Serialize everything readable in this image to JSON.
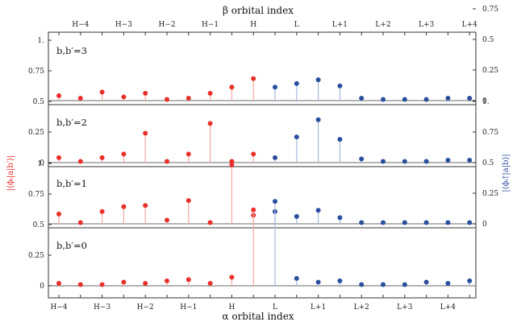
{
  "chart_data": {
    "type": "stem",
    "top_axis_title": "β orbital index",
    "bottom_axis_title": "α orbital index",
    "left_ylabel": "|⟨ϕᵢ|a|b′⟩|",
    "right_ylabel": "|⟨ϕᵢ†|a|b⟩|",
    "x_tick_labels_bottom": [
      "H−4",
      "H−3",
      "H−2",
      "H−1",
      "H",
      "L",
      "L+1",
      "L+2",
      "L+3",
      "L+4"
    ],
    "x_tick_labels_top": [
      "H−4",
      "H−3",
      "H−2",
      "H−1",
      "H",
      "L",
      "L+1",
      "L+2",
      "L+3",
      "L+4"
    ],
    "left_yticks": [
      "0",
      "0.25",
      "0.5",
      "0.75",
      "1."
    ],
    "right_yticks": [
      "0",
      "0.25",
      "0.5",
      "0.75",
      "1."
    ],
    "ylim": [
      0,
      1
    ],
    "x_positions": [
      1,
      2,
      3,
      4,
      5,
      6,
      7,
      8,
      9,
      10,
      11,
      12,
      13,
      14,
      15,
      16,
      17,
      18,
      19,
      20
    ],
    "colors": {
      "alpha": "#e8302a",
      "beta": "#2a4f9e",
      "alpha_stem": "#f4a8a0",
      "beta_stem": "#a8b8dc",
      "baseline": "#888888"
    },
    "panels": [
      {
        "label": "b,b′=3",
        "series": [
          {
            "name": "α",
            "color": "#e8302a",
            "x": [
              1,
              2,
              3,
              4,
              5,
              6,
              7,
              8,
              9,
              10
            ],
            "values": [
              0.04,
              0.02,
              0.07,
              0.03,
              0.06,
              0.01,
              0.02,
              0.06,
              0.11,
              0.18
            ]
          },
          {
            "name": "β",
            "color": "#2a4f9e",
            "x": [
              11,
              12,
              13,
              14,
              15,
              16,
              17,
              18,
              19,
              20
            ],
            "values": [
              0.11,
              0.14,
              0.17,
              0.12,
              0.02,
              0.01,
              0.01,
              0.01,
              0.02,
              0.02
            ]
          }
        ]
      },
      {
        "label": "b,b′=2",
        "series": [
          {
            "name": "α",
            "color": "#e8302a",
            "x": [
              1,
              2,
              3,
              4,
              5,
              6,
              7,
              8,
              9,
              10
            ],
            "values": [
              0.04,
              0.01,
              0.04,
              0.07,
              0.24,
              0.01,
              0.07,
              0.32,
              0.01,
              0.07
            ]
          },
          {
            "name": "β",
            "color": "#2a4f9e",
            "x": [
              11,
              12,
              13,
              14,
              15,
              16,
              17,
              18,
              19,
              20
            ],
            "values": [
              0.04,
              0.21,
              0.35,
              0.19,
              0.03,
              0.01,
              0.01,
              0.01,
              0.02,
              0.02
            ]
          }
        ]
      },
      {
        "label": "b,b′=1",
        "series": [
          {
            "name": "α",
            "color": "#e8302a",
            "x": [
              1,
              2,
              3,
              4,
              5,
              6,
              7,
              8,
              9,
              10
            ],
            "values": [
              0.08,
              0.01,
              0.1,
              0.14,
              0.15,
              0.03,
              0.19,
              0.01,
              0.48,
              0.07
            ]
          },
          {
            "name": "β",
            "color": "#2a4f9e",
            "x": [
              11,
              12,
              13,
              14,
              15,
              16,
              17,
              18,
              19,
              20
            ],
            "values": [
              0.1,
              0.06,
              0.11,
              0.05,
              0.01,
              0.01,
              0.01,
              0.01,
              0.01,
              0.01
            ]
          }
        ]
      },
      {
        "label": "b,b′=0",
        "series": [
          {
            "name": "α",
            "color": "#e8302a",
            "x": [
              1,
              2,
              3,
              4,
              5,
              6,
              7,
              8,
              9,
              10
            ],
            "values": [
              0.02,
              0.01,
              0.01,
              0.03,
              0.02,
              0.04,
              0.05,
              0.02,
              0.07,
              0.62
            ]
          },
          {
            "name": "β",
            "color": "#2a4f9e",
            "x": [
              11,
              12,
              13,
              14,
              15,
              16,
              17,
              18,
              19,
              20
            ],
            "values": [
              0.69,
              0.06,
              0.03,
              0.04,
              0.01,
              0.01,
              0.01,
              0.03,
              0.02,
              0.04
            ]
          }
        ]
      }
    ]
  }
}
